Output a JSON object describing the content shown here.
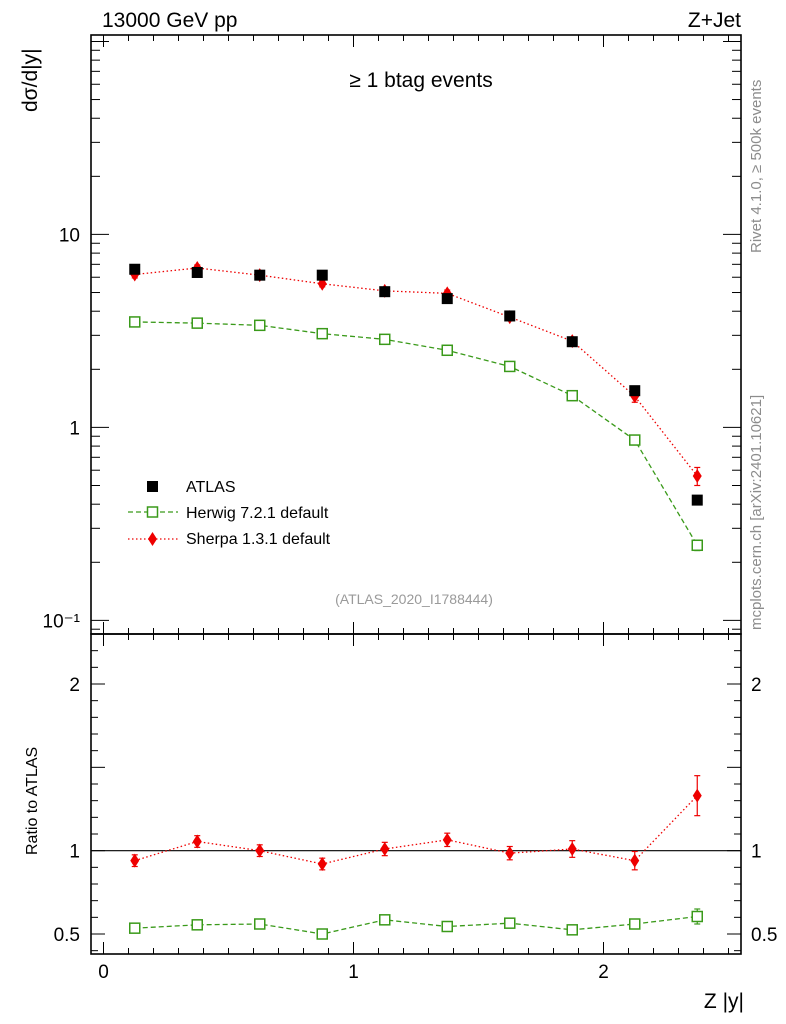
{
  "header": {
    "energy_label": "13000 GeV pp",
    "process_label": "Z+Jet",
    "selection_label": "≥ 1 btag events",
    "analysis_id": "(ATLAS_2020_I1788444)",
    "side_rivet": "Rivet 4.1.0, ≥ 500k events",
    "side_mcplots": "mcplots.cern.ch [arXiv:2401.10621]"
  },
  "axes": {
    "main_ylabel": "dσ/d|y|",
    "ratio_ylabel": "Ratio to ATLAS",
    "xlabel": "Z |y|",
    "main_yticks": [
      {
        "value": 10,
        "label": "10"
      },
      {
        "value": 1,
        "label": "1"
      },
      {
        "value": 0.1,
        "label": "10⁻¹"
      }
    ],
    "ratio_yticks": [
      {
        "value": 2,
        "label": "2"
      },
      {
        "value": 1,
        "label": "1"
      },
      {
        "value": 0.5,
        "label": "0.5"
      }
    ],
    "xticks": [
      {
        "value": 0,
        "label": "0"
      },
      {
        "value": 1,
        "label": "1"
      },
      {
        "value": 2,
        "label": "2"
      }
    ]
  },
  "legend": {
    "atlas": "ATLAS",
    "herwig": "Herwig 7.2.1 default",
    "sherpa": "Sherpa 1.3.1 default"
  },
  "colors": {
    "atlas": "#000000",
    "herwig": "#3a9a1a",
    "sherpa": "#ee0000"
  },
  "chart_data": [
    {
      "type": "scatter",
      "panel": "main",
      "title": "≥ 1 btag events",
      "xlabel": "Z |y|",
      "ylabel": "dσ/d|y|",
      "yscale": "log",
      "xlim": [
        -0.05,
        2.55
      ],
      "ylim": [
        0.085,
        108
      ],
      "x": [
        0.125,
        0.375,
        0.625,
        0.875,
        1.125,
        1.375,
        1.625,
        1.875,
        2.125,
        2.375
      ],
      "series": [
        {
          "name": "ATLAS",
          "style": "square-marker",
          "values": [
            6.6,
            6.35,
            6.15,
            6.15,
            5.05,
            4.65,
            3.78,
            2.78,
            1.55,
            0.42
          ]
        },
        {
          "name": "Herwig 7.2.1 default",
          "style": "open-square-dashed",
          "values": [
            3.52,
            3.47,
            3.38,
            3.06,
            2.86,
            2.51,
            2.07,
            1.46,
            0.86,
            0.245
          ],
          "errors": [
            0.05,
            0.05,
            0.05,
            0.05,
            0.05,
            0.05,
            0.04,
            0.03,
            0.03,
            0.015
          ]
        },
        {
          "name": "Sherpa 1.3.1 default",
          "style": "diamond-dotted",
          "values": [
            6.2,
            6.7,
            6.15,
            5.55,
            5.1,
            4.95,
            3.73,
            2.8,
            1.45,
            0.56
          ],
          "errors": [
            0.25,
            0.25,
            0.25,
            0.2,
            0.2,
            0.2,
            0.15,
            0.12,
            0.1,
            0.06
          ]
        }
      ]
    },
    {
      "type": "scatter",
      "panel": "ratio",
      "ylabel": "Ratio to ATLAS",
      "xlabel": "Z |y|",
      "xlim": [
        -0.05,
        2.55
      ],
      "ylim": [
        0.38,
        2.3
      ],
      "reference_line": 1,
      "x": [
        0.125,
        0.375,
        0.625,
        0.875,
        1.125,
        1.375,
        1.625,
        1.875,
        2.125,
        2.375
      ],
      "series": [
        {
          "name": "Herwig 7.2.1 default",
          "style": "open-square-dashed",
          "values": [
            0.535,
            0.555,
            0.56,
            0.5,
            0.585,
            0.545,
            0.565,
            0.525,
            0.56,
            0.605
          ],
          "errors": [
            0.01,
            0.01,
            0.01,
            0.01,
            0.01,
            0.01,
            0.012,
            0.012,
            0.025,
            0.045
          ]
        },
        {
          "name": "Sherpa 1.3.1 default",
          "style": "diamond-dotted",
          "values": [
            0.94,
            1.055,
            1.0,
            0.92,
            1.01,
            1.065,
            0.985,
            1.01,
            0.94,
            1.33
          ],
          "errors": [
            0.035,
            0.035,
            0.035,
            0.035,
            0.04,
            0.04,
            0.04,
            0.05,
            0.055,
            0.12
          ]
        }
      ]
    }
  ]
}
